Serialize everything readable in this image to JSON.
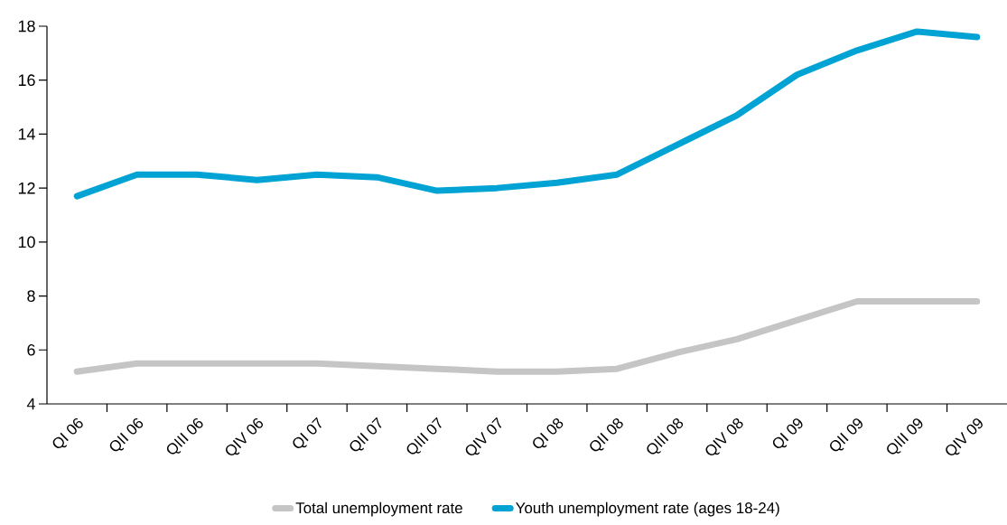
{
  "chart_data": {
    "type": "line",
    "categories": [
      "QI 06",
      "QII 06",
      "QIII 06",
      "QIV 06",
      "QI 07",
      "QII 07",
      "QIII 07",
      "QIV 07",
      "QI 08",
      "QII 08",
      "QIII 08",
      "QIV 08",
      "QI 09",
      "QII 09",
      "QIII 09",
      "QIV 09"
    ],
    "series": [
      {
        "name": "Total unemployment rate",
        "color": "#c4c5c4",
        "values": [
          5.2,
          5.5,
          5.5,
          5.5,
          5.5,
          5.4,
          5.3,
          5.2,
          5.2,
          5.3,
          5.9,
          6.4,
          7.1,
          7.8,
          7.8,
          7.8
        ]
      },
      {
        "name": "Youth unemployment rate (ages 18-24)",
        "color": "#00a3d4",
        "values": [
          11.7,
          12.5,
          12.5,
          12.3,
          12.5,
          12.4,
          11.9,
          12.0,
          12.2,
          12.5,
          13.6,
          14.7,
          16.2,
          17.1,
          17.8,
          17.6
        ]
      }
    ],
    "ylim": [
      4,
      18
    ],
    "yticks": [
      4,
      6,
      8,
      10,
      12,
      14,
      16,
      18
    ],
    "grid": false,
    "legend": "bottom",
    "marker": "none",
    "line_style": "solid"
  }
}
